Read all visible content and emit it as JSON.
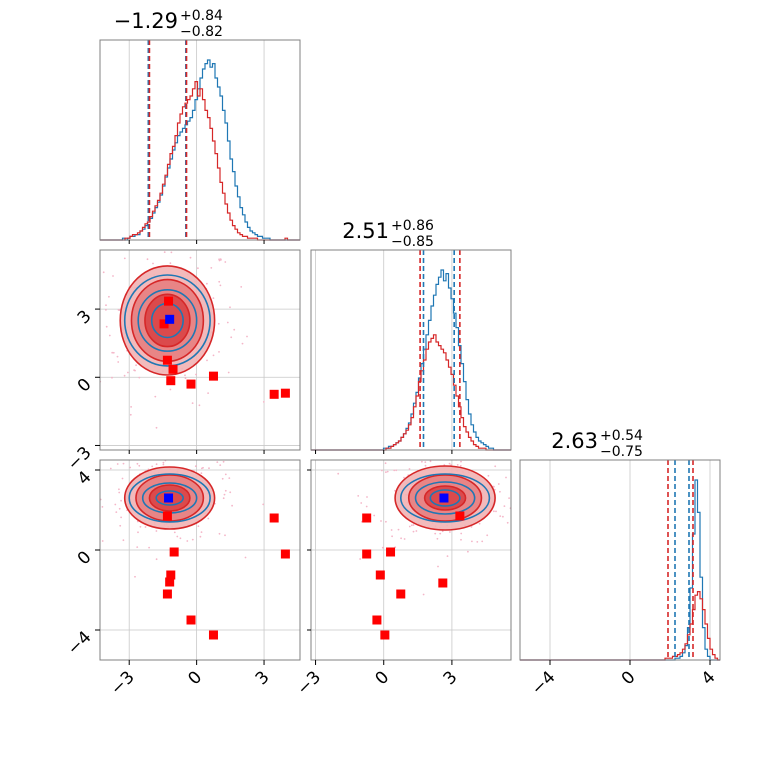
{
  "chart_data": {
    "type": "corner",
    "parameters": 3,
    "colors": {
      "sample_a": "#1f77b4",
      "sample_b": "#d62728",
      "marker": "#ff0000",
      "truth": "#0000ff",
      "scatter": "#f4b6c8"
    },
    "axis_ranges": {
      "p0": [
        -4.3,
        4.6
      ],
      "p1": [
        -3.2,
        5.6
      ],
      "p2": [
        -5.5,
        4.5
      ]
    },
    "grid": true,
    "diagonal": [
      {
        "title_main": "−1.29",
        "title_sup": "+0.84",
        "title_sub": "−0.82",
        "median": -1.29,
        "quantiles_a": [
          -2.15,
          -0.48
        ],
        "quantiles_b": [
          -2.1,
          -0.45
        ]
      },
      {
        "title_main": "2.51",
        "title_sup": "+0.86",
        "title_sub": "−0.85",
        "median": 2.51,
        "quantiles_a": [
          1.75,
          3.1
        ],
        "quantiles_b": [
          1.6,
          3.35
        ]
      },
      {
        "title_main": "2.63",
        "title_sup": "+0.54",
        "title_sub": "−0.75",
        "median": 2.63,
        "quantiles_a": [
          2.25,
          2.95
        ],
        "quantiles_b": [
          1.9,
          3.15
        ]
      }
    ],
    "histograms": [
      {
        "param": 0,
        "bins": [
          -4.3,
          4.6
        ],
        "a": [
          0,
          0,
          0,
          0,
          0,
          0,
          0,
          0,
          0,
          1,
          0,
          1,
          2,
          2,
          3,
          3,
          5,
          6,
          8,
          10,
          12,
          15,
          18,
          21,
          25,
          30,
          35,
          40,
          45,
          50,
          54,
          58,
          60,
          62,
          64,
          66,
          68,
          72,
          78,
          84,
          90,
          95,
          98,
          100,
          96,
          98,
          90,
          85,
          80,
          72,
          65,
          55,
          45,
          38,
          30,
          24,
          18,
          14,
          10,
          7,
          5,
          4,
          3,
          2,
          2,
          1,
          1,
          1,
          0,
          0,
          0,
          0,
          0,
          0,
          0,
          0,
          0,
          0,
          0,
          0
        ],
        "b": [
          0,
          0,
          0,
          0,
          0,
          0,
          0,
          0,
          0,
          0,
          1,
          1,
          2,
          3,
          3,
          4,
          5,
          7,
          9,
          10,
          13,
          16,
          19,
          22,
          26,
          31,
          36,
          42,
          48,
          52,
          58,
          65,
          70,
          74,
          76,
          78,
          80,
          84,
          88,
          80,
          84,
          78,
          72,
          68,
          62,
          55,
          48,
          40,
          32,
          26,
          20,
          15,
          11,
          8,
          6,
          4,
          3,
          2,
          2,
          1,
          1,
          1,
          1,
          0,
          0,
          0,
          0,
          0,
          0,
          0,
          0,
          0,
          0,
          0,
          1,
          0,
          0,
          0,
          0,
          0
        ]
      },
      {
        "param": 1,
        "bins": [
          -3.2,
          5.6
        ],
        "a": [
          0,
          0,
          0,
          0,
          0,
          0,
          0,
          0,
          0,
          0,
          0,
          0,
          0,
          0,
          0,
          0,
          0,
          0,
          0,
          0,
          0,
          0,
          0,
          0,
          0,
          0,
          0,
          0,
          0,
          1,
          1,
          2,
          2,
          3,
          4,
          5,
          7,
          9,
          12,
          15,
          20,
          26,
          32,
          40,
          48,
          56,
          64,
          72,
          80,
          86,
          92,
          96,
          100,
          94,
          98,
          90,
          84,
          76,
          68,
          58,
          48,
          38,
          28,
          20,
          14,
          10,
          7,
          5,
          4,
          3,
          2,
          1,
          1,
          0,
          0,
          0,
          0,
          0,
          0,
          0
        ],
        "b": [
          0,
          0,
          0,
          0,
          0,
          0,
          0,
          0,
          0,
          0,
          0,
          0,
          0,
          0,
          0,
          0,
          0,
          0,
          0,
          0,
          0,
          0,
          0,
          0,
          0,
          0,
          0,
          0,
          0,
          0,
          1,
          1,
          2,
          3,
          4,
          5,
          7,
          9,
          11,
          14,
          18,
          24,
          30,
          38,
          44,
          50,
          56,
          60,
          62,
          64,
          60,
          58,
          56,
          54,
          50,
          46,
          42,
          36,
          30,
          24,
          18,
          13,
          10,
          7,
          5,
          3,
          2,
          1,
          1,
          1,
          0,
          0,
          0,
          0,
          0,
          0,
          0,
          0,
          0,
          0
        ]
      },
      {
        "param": 2,
        "bins": [
          -5.5,
          4.5
        ],
        "a": [
          0,
          0,
          0,
          0,
          0,
          0,
          0,
          0,
          0,
          0,
          0,
          0,
          0,
          0,
          0,
          0,
          0,
          0,
          0,
          0,
          0,
          0,
          0,
          0,
          0,
          0,
          0,
          0,
          0,
          0,
          0,
          0,
          0,
          0,
          0,
          0,
          0,
          0,
          0,
          0,
          0,
          0,
          0,
          0,
          0,
          0,
          0,
          0,
          0,
          0,
          0,
          0,
          0,
          0,
          0,
          0,
          0,
          0,
          0,
          0,
          0,
          0,
          1,
          1,
          2,
          4,
          8,
          18,
          40,
          70,
          100,
          82,
          46,
          18,
          6,
          2,
          0,
          0,
          0,
          0
        ],
        "b": [
          0,
          0,
          0,
          0,
          0,
          0,
          0,
          0,
          0,
          0,
          0,
          0,
          0,
          0,
          0,
          0,
          0,
          0,
          0,
          0,
          0,
          0,
          0,
          0,
          0,
          0,
          0,
          0,
          0,
          0,
          0,
          0,
          0,
          0,
          0,
          0,
          0,
          0,
          0,
          0,
          0,
          0,
          0,
          0,
          0,
          0,
          0,
          0,
          0,
          0,
          0,
          0,
          0,
          0,
          0,
          0,
          0,
          0,
          1,
          1,
          1,
          2,
          2,
          3,
          4,
          6,
          9,
          14,
          20,
          28,
          36,
          38,
          34,
          28,
          20,
          12,
          6,
          3,
          1,
          0
        ]
      }
    ],
    "panels": [
      {
        "row": 1,
        "col": 0,
        "xparam": 0,
        "yparam": 1,
        "center": [
          -1.3,
          2.5
        ],
        "contours_filled": [
          {
            "rx": 2.1,
            "ry": 2.4
          },
          {
            "rx": 1.6,
            "ry": 1.8
          },
          {
            "rx": 1.0,
            "ry": 1.15
          }
        ],
        "contours_line": [
          {
            "rx": 1.9,
            "ry": 2.0
          },
          {
            "rx": 1.3,
            "ry": 1.35
          },
          {
            "rx": 0.7,
            "ry": 0.75
          }
        ],
        "markers": [
          [
            -1.25,
            3.35
          ],
          [
            -1.45,
            2.35
          ],
          [
            -1.3,
            0.75
          ],
          [
            -1.05,
            0.35
          ],
          [
            -1.15,
            -0.15
          ],
          [
            -0.25,
            -0.3
          ],
          [
            0.75,
            0.05
          ],
          [
            3.45,
            -0.75
          ],
          [
            3.95,
            -0.7
          ]
        ],
        "truth": [
          -1.2,
          2.55
        ]
      },
      {
        "row": 2,
        "col": 0,
        "xparam": 0,
        "yparam": 2,
        "center": [
          -1.2,
          2.6
        ],
        "contours_filled": [
          {
            "rx": 2.0,
            "ry": 1.55
          },
          {
            "rx": 1.5,
            "ry": 1.15
          },
          {
            "rx": 0.9,
            "ry": 0.65
          }
        ],
        "contours_line": [
          {
            "rx": 1.8,
            "ry": 1.2
          },
          {
            "rx": 1.2,
            "ry": 0.75
          },
          {
            "rx": 0.6,
            "ry": 0.35
          }
        ],
        "markers": [
          [
            -1.3,
            1.7
          ],
          [
            3.45,
            1.6
          ],
          [
            -1.0,
            -0.1
          ],
          [
            3.95,
            -0.2
          ],
          [
            -1.15,
            -1.25
          ],
          [
            -1.2,
            -1.6
          ],
          [
            -1.3,
            -2.2
          ],
          [
            -0.25,
            -3.5
          ],
          [
            0.75,
            -4.25
          ]
        ],
        "truth": [
          -1.25,
          2.6
        ]
      },
      {
        "row": 2,
        "col": 1,
        "xparam": 1,
        "yparam": 2,
        "center": [
          2.7,
          2.6
        ],
        "contours_filled": [
          {
            "rx": 2.2,
            "ry": 1.6
          },
          {
            "rx": 1.6,
            "ry": 1.15
          },
          {
            "rx": 0.9,
            "ry": 0.6
          }
        ],
        "contours_line": [
          {
            "rx": 1.95,
            "ry": 1.2
          },
          {
            "rx": 1.3,
            "ry": 0.8
          },
          {
            "rx": 0.65,
            "ry": 0.4
          }
        ],
        "markers": [
          [
            3.35,
            1.7
          ],
          [
            -0.75,
            1.6
          ],
          [
            -0.75,
            -0.2
          ],
          [
            0.3,
            -0.1
          ],
          [
            -0.15,
            -1.25
          ],
          [
            2.6,
            -1.65
          ],
          [
            0.75,
            -2.2
          ],
          [
            -0.3,
            -3.5
          ],
          [
            0.05,
            -4.25
          ]
        ],
        "truth": [
          2.65,
          2.6
        ]
      }
    ],
    "ticks": {
      "p0": {
        "values": [
          -3,
          0,
          3
        ],
        "labels": [
          "−3",
          "0",
          "3"
        ]
      },
      "p1": {
        "values": [
          -3,
          0,
          3
        ],
        "labels": [
          "−3",
          "0",
          "3"
        ]
      },
      "p2": {
        "values": [
          -4,
          0,
          4
        ],
        "labels": [
          "−4",
          "0",
          "4"
        ]
      }
    }
  }
}
